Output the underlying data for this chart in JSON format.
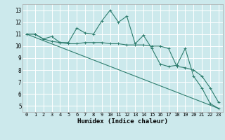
{
  "xlabel": "Humidex (Indice chaleur)",
  "bg_color": "#cce9ec",
  "grid_color": "#ffffff",
  "line_color": "#2e7d6e",
  "xlim": [
    -0.5,
    23.5
  ],
  "ylim": [
    4.5,
    13.5
  ],
  "yticks": [
    5,
    6,
    7,
    8,
    9,
    10,
    11,
    12,
    13
  ],
  "xticks": [
    0,
    1,
    2,
    3,
    4,
    5,
    6,
    7,
    8,
    9,
    10,
    11,
    12,
    13,
    14,
    15,
    16,
    17,
    18,
    19,
    20,
    21,
    22,
    23
  ],
  "line1_x": [
    0,
    1,
    2,
    3,
    4,
    5,
    6,
    7,
    8,
    9,
    10,
    11,
    12,
    13,
    14,
    15,
    16,
    17,
    18,
    19,
    20,
    21,
    22,
    23
  ],
  "line1_y": [
    11.0,
    11.0,
    10.6,
    10.8,
    10.3,
    10.3,
    11.5,
    11.1,
    11.0,
    12.1,
    13.0,
    12.0,
    12.5,
    10.2,
    10.9,
    9.8,
    8.5,
    8.3,
    8.4,
    9.8,
    7.5,
    6.5,
    5.2,
    4.8
  ],
  "line2_x": [
    0,
    1,
    2,
    3,
    4,
    5,
    6,
    7,
    8,
    9,
    10,
    11,
    12,
    13,
    14,
    15,
    16,
    17,
    18,
    19,
    20,
    21,
    22,
    23
  ],
  "line2_y": [
    11.0,
    11.0,
    10.6,
    10.4,
    10.3,
    10.2,
    10.2,
    10.3,
    10.3,
    10.3,
    10.2,
    10.2,
    10.1,
    10.1,
    10.1,
    10.0,
    10.0,
    9.8,
    8.3,
    8.2,
    8.0,
    7.5,
    6.5,
    5.3
  ],
  "line3_x": [
    0,
    23
  ],
  "line3_y": [
    11.0,
    4.8
  ]
}
